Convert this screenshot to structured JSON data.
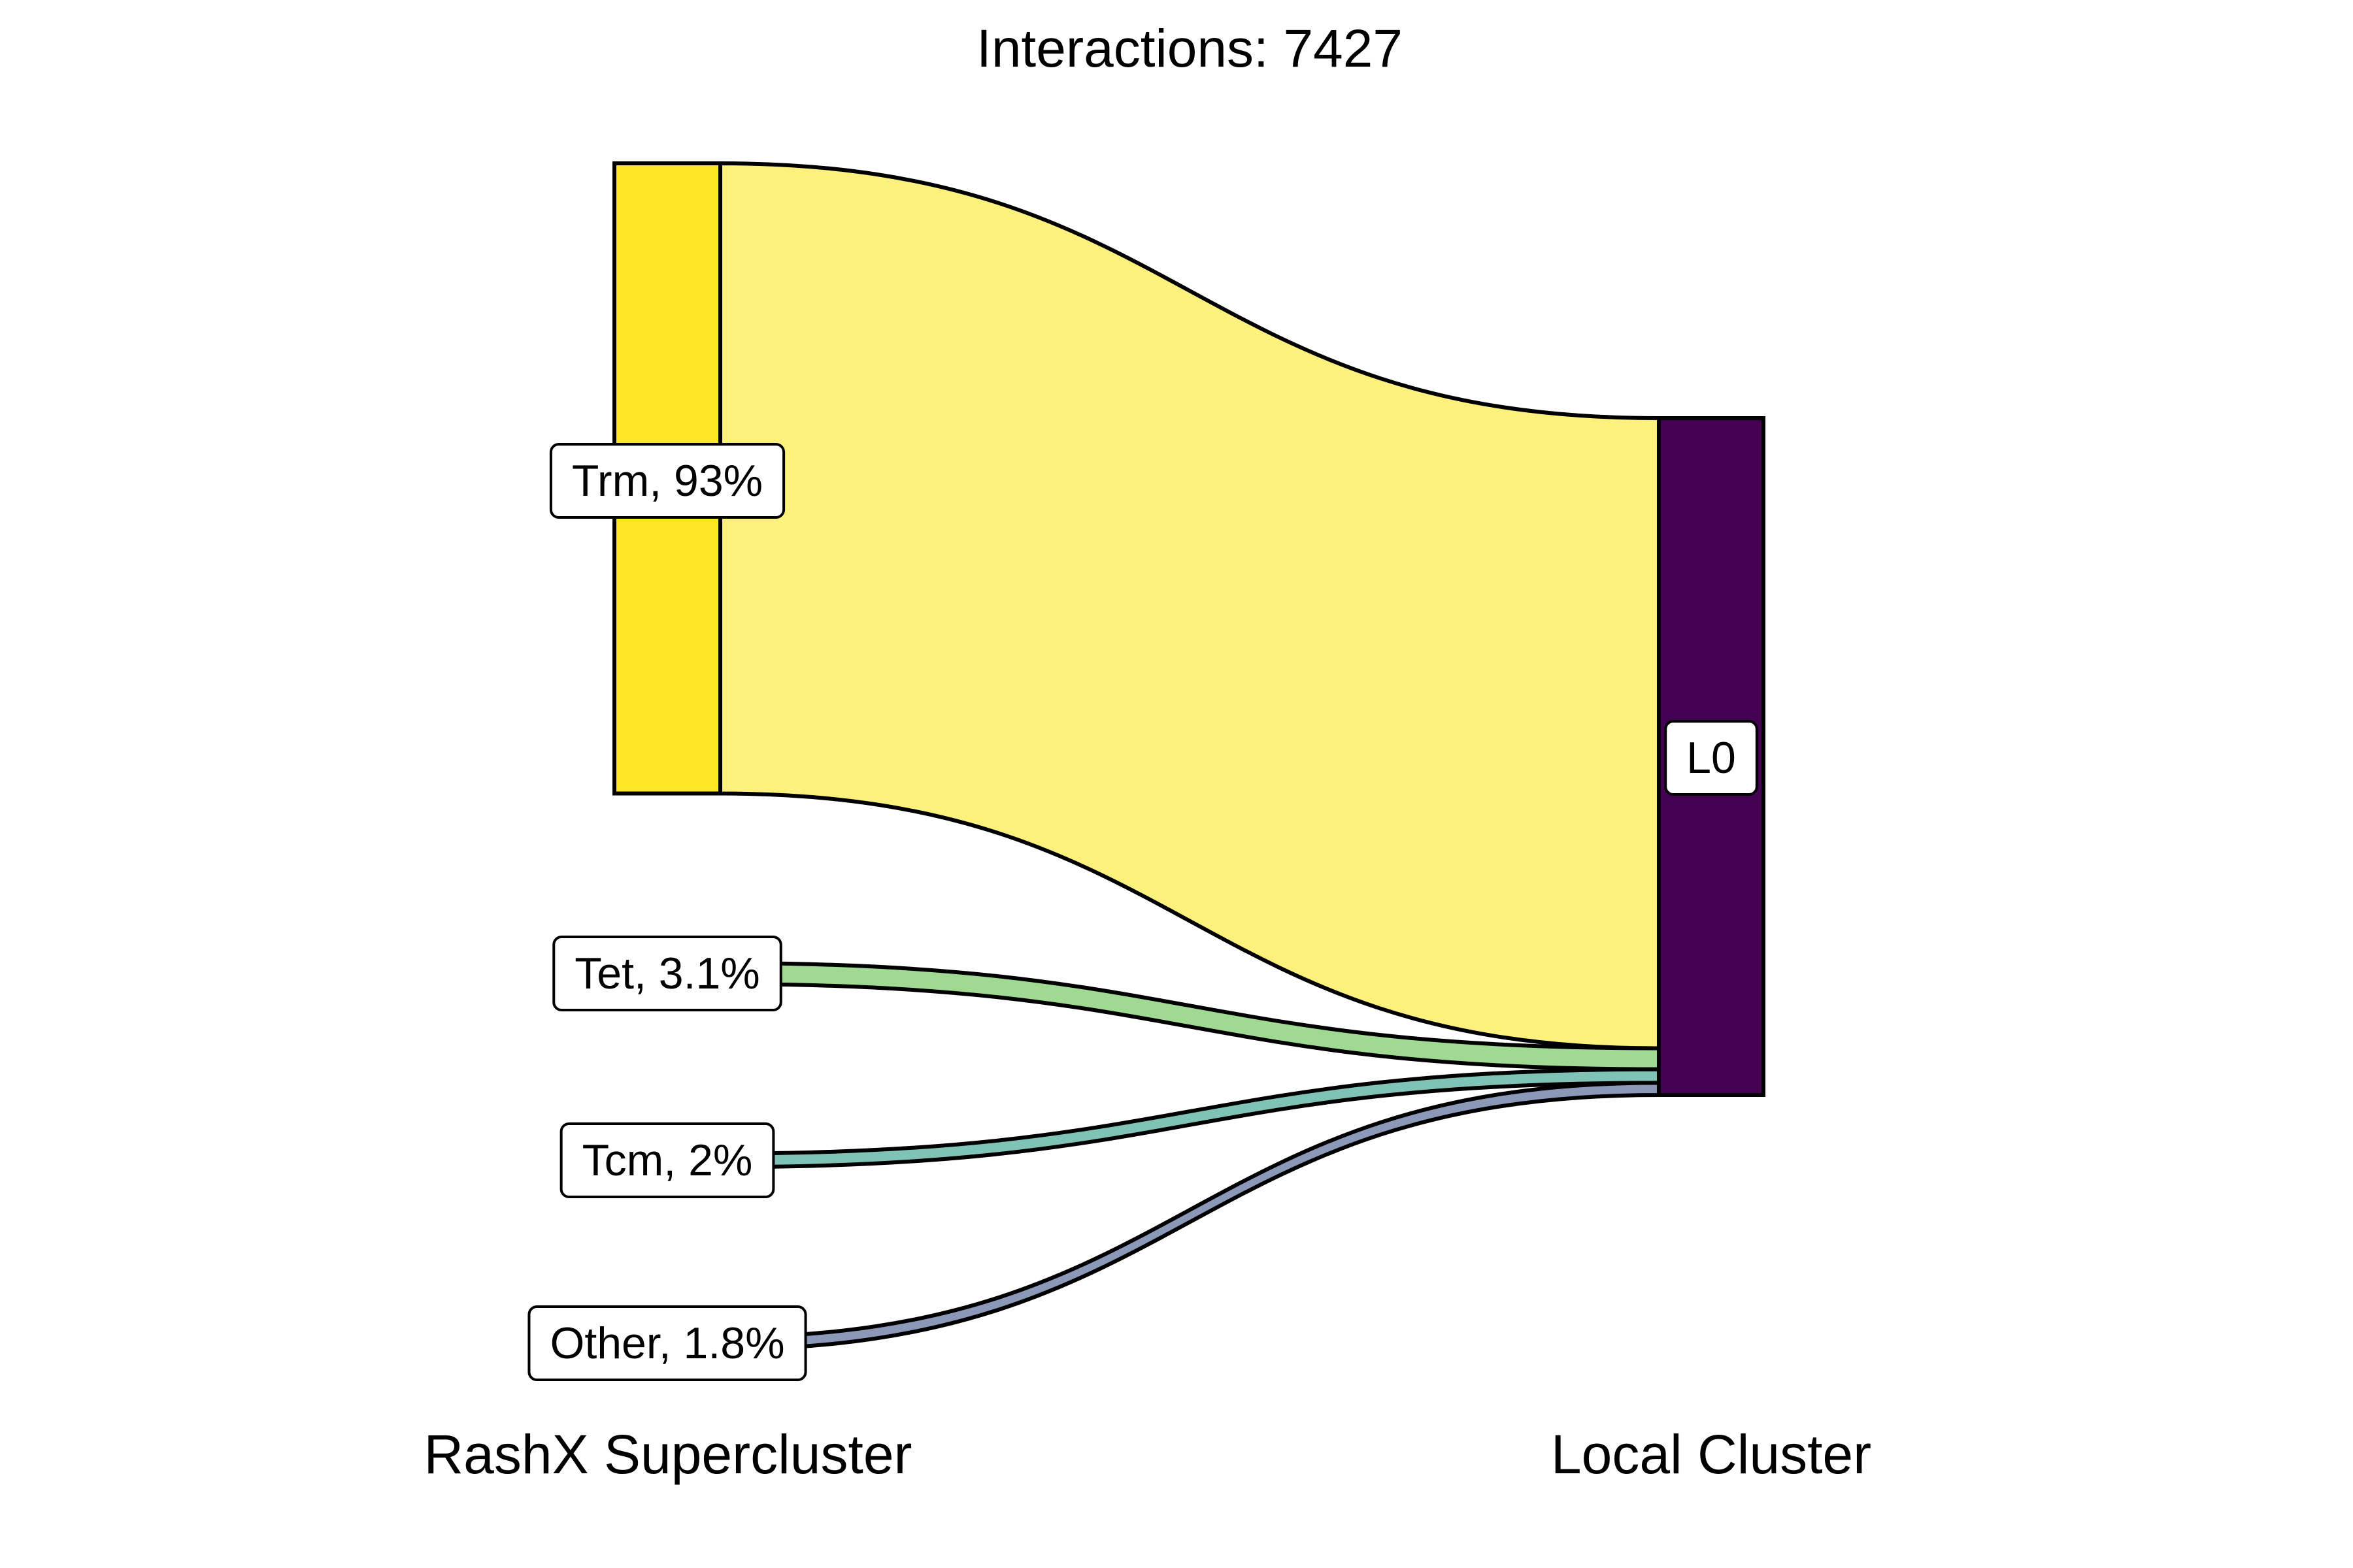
{
  "chart_data": {
    "type": "sankey",
    "title": "Interactions: 7427",
    "axes": [
      {
        "label": "RashX Supercluster"
      },
      {
        "label": "Local Cluster"
      }
    ],
    "source_nodes": [
      {
        "name": "Trm",
        "label": "Trm, 93%",
        "percent": 93.1,
        "color": "#fde725",
        "flow_color": "#fdf17e"
      },
      {
        "name": "Tet",
        "label": "Tet, 3.1%",
        "percent": 3.1,
        "color": "#a0da92",
        "flow_color": "#a0da92"
      },
      {
        "name": "Tcm",
        "label": "Tcm, 2%",
        "percent": 2.0,
        "color": "#7fc3b7",
        "flow_color": "#7fc3b7"
      },
      {
        "name": "Other",
        "label": "Other, 1.8%",
        "percent": 1.8,
        "color": "#8c98b8",
        "flow_color": "#8c98b8"
      }
    ],
    "target_nodes": [
      {
        "name": "L0",
        "label": "L0",
        "percent": 100,
        "color": "#440154"
      }
    ],
    "flows": [
      {
        "source": "Trm",
        "target": "L0",
        "percent": 93.1
      },
      {
        "source": "Tet",
        "target": "L0",
        "percent": 3.1
      },
      {
        "source": "Tcm",
        "target": "L0",
        "percent": 2.0
      },
      {
        "source": "Other",
        "target": "L0",
        "percent": 1.8
      }
    ]
  }
}
